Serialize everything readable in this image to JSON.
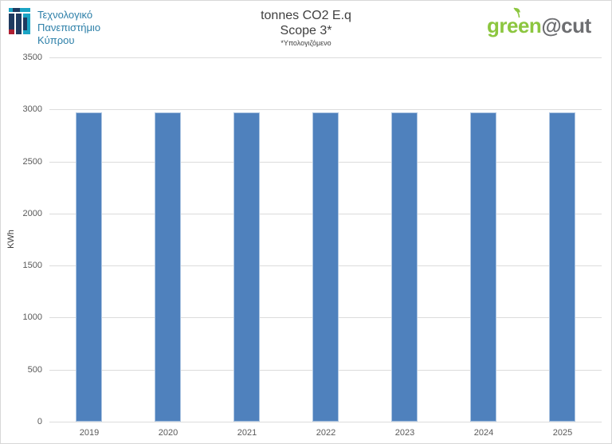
{
  "header": {
    "university_lines": [
      "Τεχνολογικό",
      "Πανεπιστήμιο",
      "Κύπρου"
    ],
    "title": "tonnes CO2 E.q",
    "subtitle": "Scope 3*",
    "note": "*Υπολογιζόμενο",
    "brand": {
      "green": "green",
      "rest": "@cut"
    }
  },
  "chart_data": {
    "type": "bar",
    "categories": [
      "2019",
      "2020",
      "2021",
      "2022",
      "2023",
      "2024",
      "2025"
    ],
    "values": [
      2970,
      2970,
      2970,
      2970,
      2970,
      2970,
      2970
    ],
    "title": "tonnes CO2 E.q",
    "subtitle": "Scope 3*",
    "note": "*Υπολογιζόμενο",
    "xlabel": "",
    "ylabel": "KWh",
    "ylim": [
      0,
      3500
    ],
    "ytick_step": 500,
    "grid": true,
    "legend": "none",
    "bar_color": "#4f81bd",
    "bar_border_color": "#aec6e2",
    "gridline_color": "#dcdcdc"
  },
  "colors": {
    "uni_navy": "#1f3a60",
    "uni_teal": "#1ba4c4",
    "uni_red": "#ad1f32",
    "uni_text": "#2c7fa8",
    "brand_green": "#8cc63f",
    "brand_gray": "#6d6e71",
    "title_text": "#3f3f3f",
    "axis_text": "#595959"
  }
}
